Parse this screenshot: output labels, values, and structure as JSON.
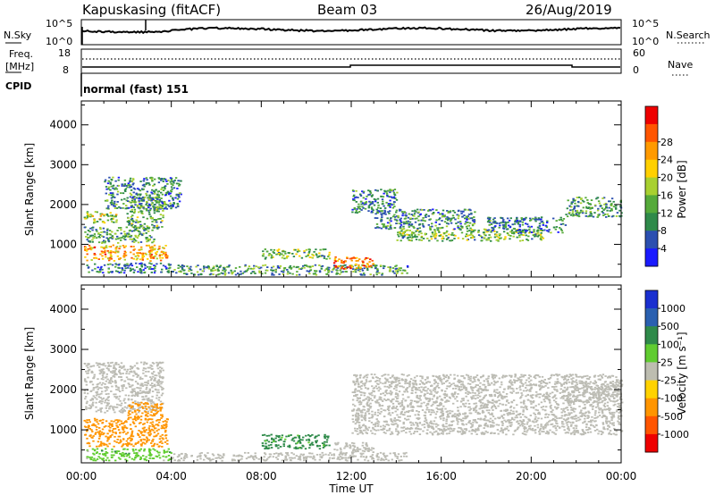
{
  "header": {
    "station": "Kapuskasing (fitACF)",
    "beam": "Beam 03",
    "date": "26/Aug/2019"
  },
  "noise_panel": {
    "left_label": "N.Sky",
    "right_label": "N.Search",
    "left_ticks": [
      "10^5",
      "10^0"
    ],
    "right_ticks": [
      "10^5",
      "10^0"
    ]
  },
  "freq_panel": {
    "left_label_line1": "Freq.",
    "left_label_line2": "[MHz]",
    "left_ticks": [
      "18",
      "8"
    ],
    "right_label": "Nave",
    "right_ticks": [
      "60",
      "0"
    ]
  },
  "cpid": {
    "label": "CPID",
    "value": "normal (fast) 151"
  },
  "x_axis": {
    "label": "Time UT",
    "ticks": [
      "00:00",
      "04:00",
      "08:00",
      "12:00",
      "16:00",
      "20:00",
      "00:00"
    ]
  },
  "colors": {
    "power": [
      "#1a1aff",
      "#2b4fb0",
      "#2f8a4a",
      "#55aa3a",
      "#a8d030",
      "#ffd000",
      "#ff9a00",
      "#ff5500",
      "#ee0000"
    ],
    "velocity": [
      "#1a2fd0",
      "#2a60b0",
      "#2f8a4a",
      "#60cc30",
      "#bdbdb0",
      "#ffd200",
      "#ff9500",
      "#ff5500",
      "#ee0000"
    ],
    "ground_scatter": "#bcbcb4"
  },
  "chart_data": [
    {
      "type": "heatmap",
      "title": "",
      "ylabel": "Slant Range [km]",
      "xlabel": "",
      "ylim": [
        180,
        4600
      ],
      "yticks": [
        "1000",
        "2000",
        "3000",
        "4000"
      ],
      "xlim": [
        0,
        24
      ],
      "colorbar": {
        "label": "Power [dB]",
        "ticks": [
          "4",
          "8",
          "12",
          "16",
          "20",
          "24",
          "28"
        ]
      },
      "regions": [
        {
          "t": [
            0.1,
            3.8
          ],
          "r": [
            600,
            1000
          ],
          "v": 22
        },
        {
          "t": [
            0.1,
            3.2
          ],
          "r": [
            1050,
            1450
          ],
          "v": 12
        },
        {
          "t": [
            0.1,
            1.6
          ],
          "r": [
            1550,
            1850
          ],
          "v": 16
        },
        {
          "t": [
            2.0,
            3.6
          ],
          "r": [
            1400,
            2200
          ],
          "v": 13
        },
        {
          "t": [
            1.0,
            4.4
          ],
          "r": [
            1900,
            2700
          ],
          "v": 10
        },
        {
          "t": [
            0.2,
            4.0
          ],
          "r": [
            300,
            550
          ],
          "v": 9
        },
        {
          "t": [
            4.0,
            14.5
          ],
          "r": [
            250,
            500
          ],
          "v": 11
        },
        {
          "t": [
            8.0,
            11.0
          ],
          "r": [
            650,
            900
          ],
          "v": 14
        },
        {
          "t": [
            11.2,
            13.0
          ],
          "r": [
            400,
            700
          ],
          "v": 25
        },
        {
          "t": [
            12.0,
            14.0
          ],
          "r": [
            1800,
            2400
          ],
          "v": 9
        },
        {
          "t": [
            14.0,
            20.5
          ],
          "r": [
            1100,
            1400
          ],
          "v": 14
        },
        {
          "t": [
            13.0,
            17.5
          ],
          "r": [
            1400,
            1900
          ],
          "v": 10
        },
        {
          "t": [
            18.0,
            21.5
          ],
          "r": [
            1300,
            1700
          ],
          "v": 9
        },
        {
          "t": [
            21.5,
            24.0
          ],
          "r": [
            1700,
            2200
          ],
          "v": 11
        }
      ]
    },
    {
      "type": "heatmap",
      "title": "",
      "ylabel": "Slant Range [km]",
      "xlabel": "Time UT",
      "ylim": [
        180,
        4600
      ],
      "yticks": [
        "1000",
        "2000",
        "3000",
        "4000"
      ],
      "xlim": [
        0,
        24
      ],
      "colorbar": {
        "label": "Velocity [m s⁻¹]",
        "ticks": [
          "1000",
          "500",
          "100",
          "25",
          "-25",
          "-100",
          "-500",
          "-1000"
        ]
      },
      "regions": [
        {
          "t": [
            0.1,
            3.8
          ],
          "r": [
            600,
            1300
          ],
          "v": -300
        },
        {
          "t": [
            0.1,
            3.6
          ],
          "r": [
            1450,
            2700
          ],
          "v": 0
        },
        {
          "t": [
            2.0,
            3.6
          ],
          "r": [
            1300,
            1700
          ],
          "v": -200
        },
        {
          "t": [
            0.2,
            4.0
          ],
          "r": [
            250,
            550
          ],
          "v": 60
        },
        {
          "t": [
            4.0,
            14.5
          ],
          "r": [
            250,
            450
          ],
          "v": 0
        },
        {
          "t": [
            8.0,
            11.0
          ],
          "r": [
            550,
            900
          ],
          "v": 150
        },
        {
          "t": [
            11.2,
            13.0
          ],
          "r": [
            400,
            700
          ],
          "v": 0
        },
        {
          "t": [
            12.0,
            24.0
          ],
          "r": [
            900,
            2400
          ],
          "v": 0
        },
        {
          "t": [
            21.5,
            24.0
          ],
          "r": [
            1700,
            2200
          ],
          "v": 0
        }
      ]
    }
  ]
}
